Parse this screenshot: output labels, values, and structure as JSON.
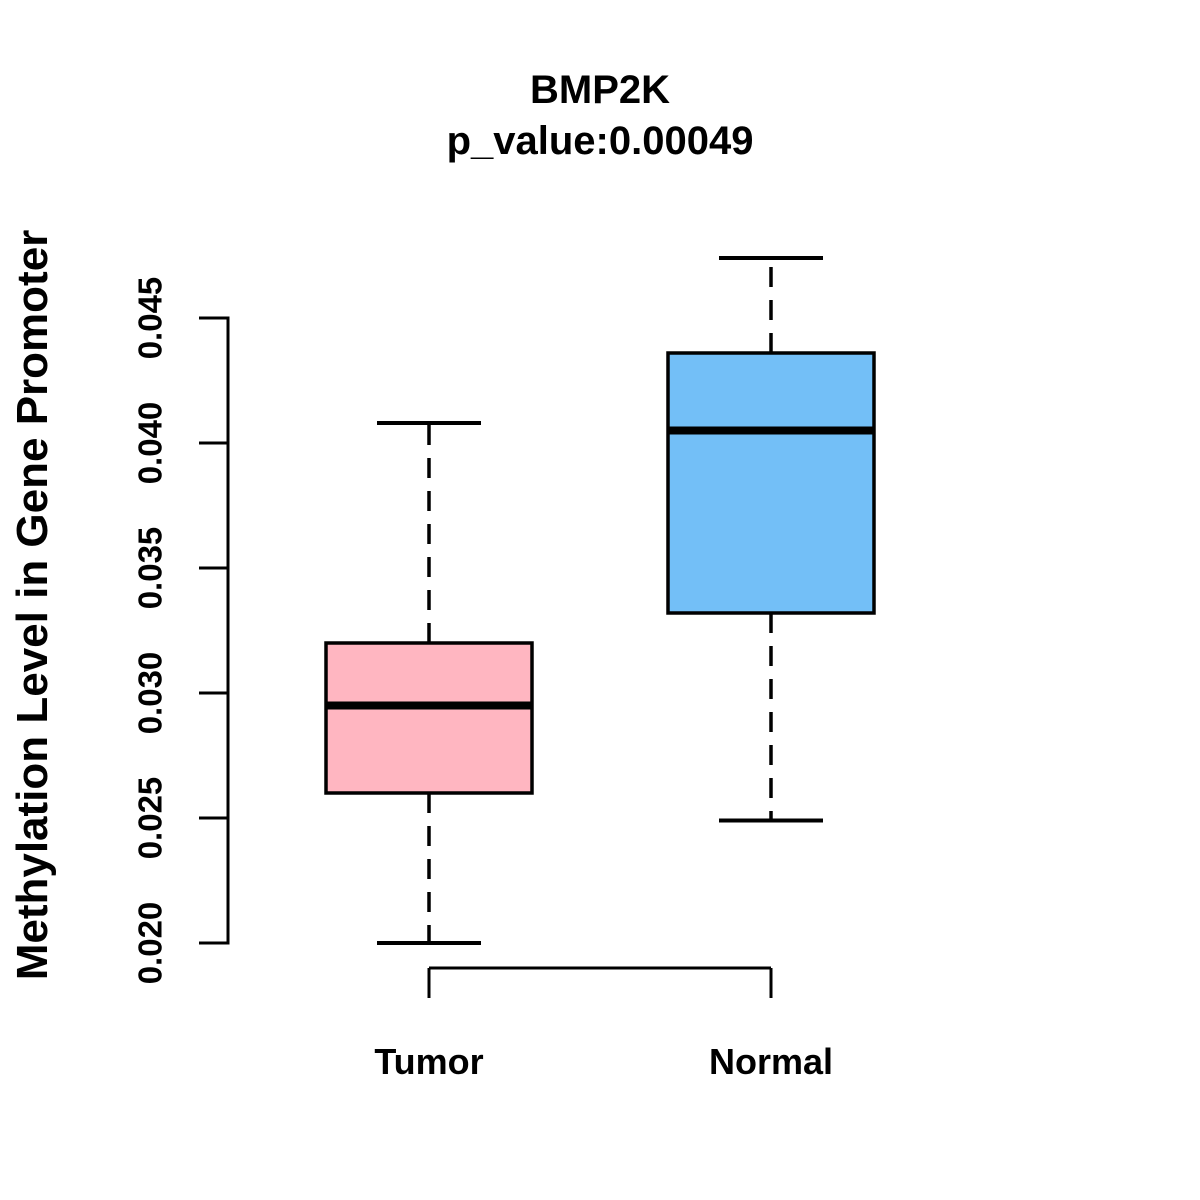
{
  "chart_data": {
    "type": "boxplot",
    "title": "BMP2K",
    "subtitle": "p_value:0.00049",
    "ylabel": "Methylation Level in Gene Promoter",
    "xlabel": "",
    "ylim": [
      0.02,
      0.045
    ],
    "ytick_labels": [
      "0.020",
      "0.025",
      "0.030",
      "0.035",
      "0.040",
      "0.045"
    ],
    "ytick_values": [
      0.02,
      0.025,
      0.03,
      0.035,
      0.04,
      0.045
    ],
    "grid": false,
    "legend": "none",
    "groups": [
      {
        "label": "Tumor",
        "fill_color": "#FFB6C1",
        "lower_whisker": 0.02,
        "q1": 0.026,
        "median": 0.0295,
        "q3": 0.032,
        "upper_whisker": 0.0408
      },
      {
        "label": "Normal",
        "fill_color": "#73BFF7",
        "lower_whisker": 0.0249,
        "q1": 0.0332,
        "median": 0.0405,
        "q3": 0.0436,
        "upper_whisker": 0.0474
      }
    ],
    "colors": {
      "box_border": "#000000",
      "median_line": "#000000",
      "whisker": "#000000",
      "axis": "#000000",
      "text": "#000000",
      "background": "#ffffff"
    }
  }
}
